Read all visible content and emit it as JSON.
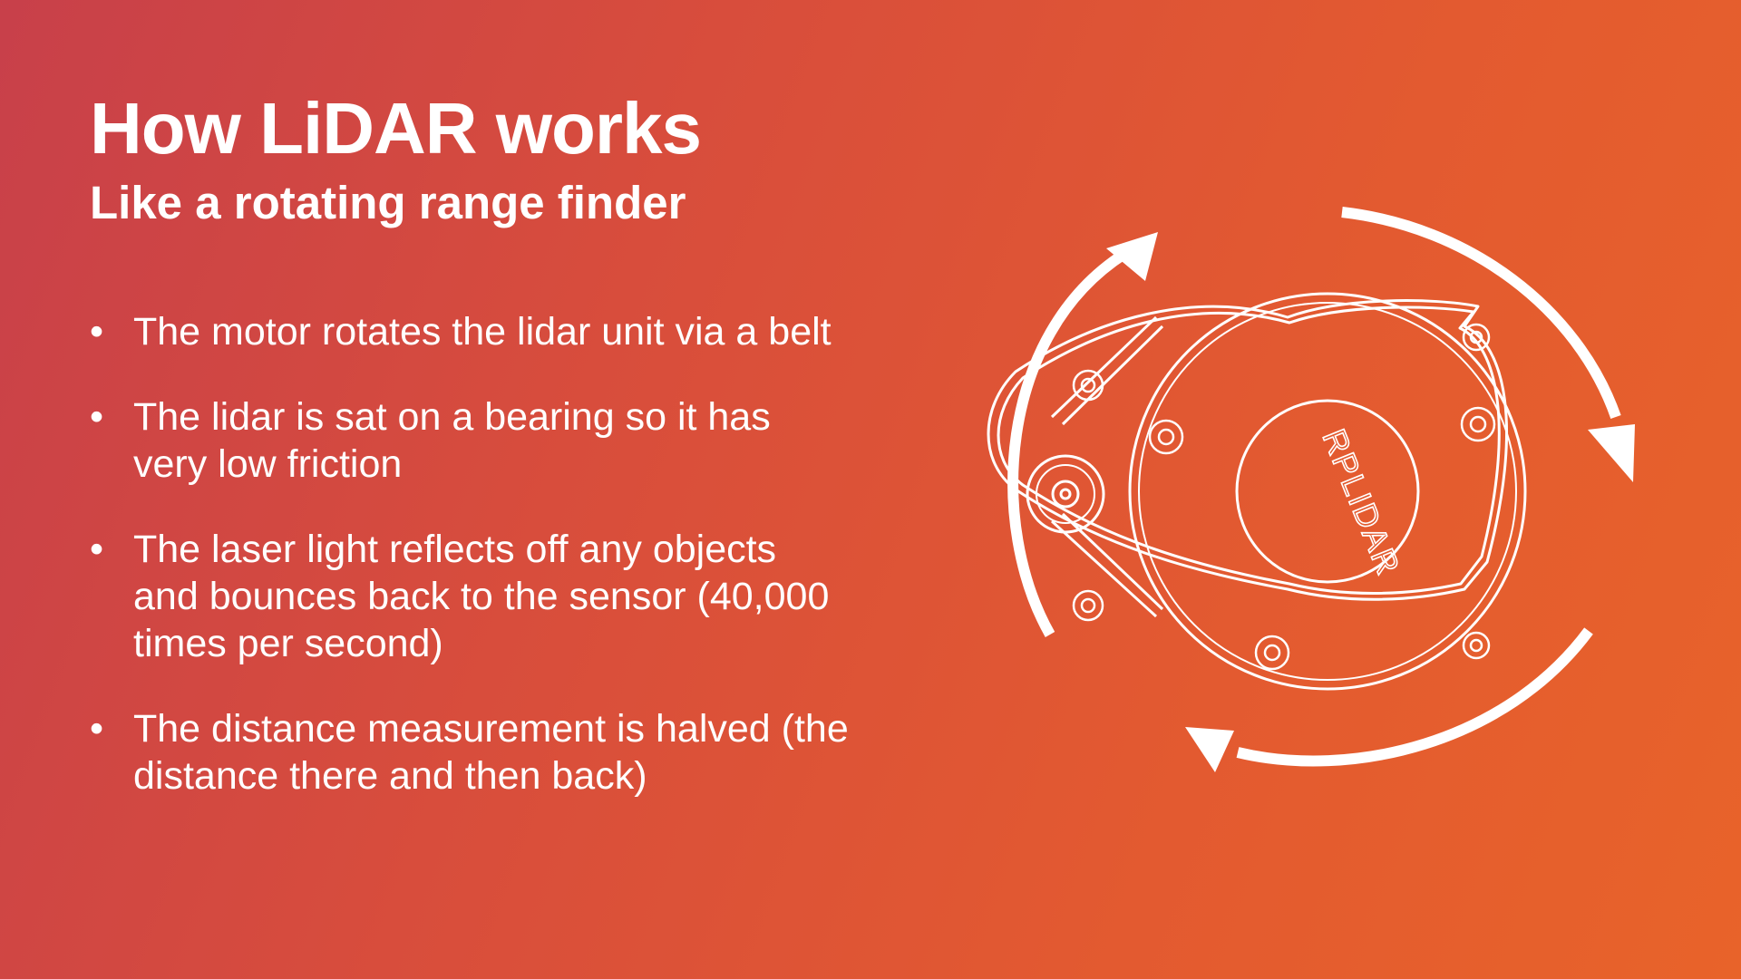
{
  "slide": {
    "title": "How LiDAR works",
    "subtitle": "Like a rotating range finder",
    "background_colors": [
      "#c8404a",
      "#e8632a"
    ],
    "bullets": [
      {
        "text": "The motor rotates the lidar unit via a belt"
      },
      {
        "text": "The lidar is sat on a bearing so it has very low friction"
      },
      {
        "text": "The laser light reflects off any objects and bounces back to the sensor (40,000 times per second)"
      },
      {
        "text": "The distance measurement is halved (the distance there and then back)"
      }
    ],
    "diagram": {
      "device_label": "RPLIDAR",
      "icon": "rotation-arrows-icon",
      "line_color": "#ffffff"
    }
  }
}
